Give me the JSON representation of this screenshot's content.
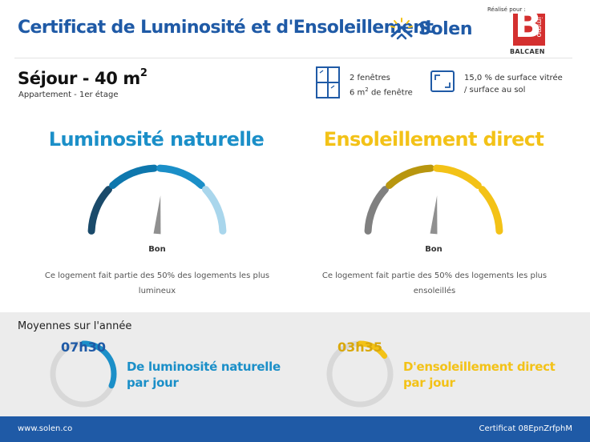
{
  "header": {
    "title": "Certificat de Luminosité et d'Ensoleillement",
    "brand_name": "Solen",
    "made_by_label": "Réalisé pour :",
    "partner_logo_word": "immo",
    "partner_name": "BALCAEN",
    "brand_color": "#1f5aa6",
    "partner_color": "#d4302f"
  },
  "room": {
    "name": "Séjour - 40 m",
    "name_sup": "2",
    "subtitle": "Appartement - 1er étage",
    "windows_count_text": "2 fenêtres",
    "window_area_text": "6 m",
    "window_area_sup": "2",
    "window_area_suffix": " de fenêtre",
    "glazed_ratio_line1": "15,0 % de surface vitrée",
    "glazed_ratio_line2": "/ surface au sol",
    "window_icon": "window-icon",
    "surface_icon": "surface-ratio-icon"
  },
  "luminosity": {
    "title": "Luminosité naturelle",
    "rating": "Bon",
    "level_segment": 3,
    "segments": 4,
    "description_line1": "Ce logement fait partie des 50% des logements les plus",
    "description_line2": "lumineux",
    "title_color": "#1b8fc8",
    "segment_colors": [
      "#1a4a6a",
      "#0e77ad",
      "#1b8fc8",
      "#a9d6ec"
    ]
  },
  "sunshine": {
    "title": "Ensoleillement direct",
    "rating": "Bon",
    "level_segment": 3,
    "segments": 4,
    "description_line1": "Ce logement fait partie des 50% des logements les plus",
    "description_line2": "ensoleillés",
    "title_color": "#f3c217",
    "segment_colors": [
      "#808080",
      "#b8960f",
      "#f3c217",
      "#f3c217"
    ]
  },
  "averages": {
    "heading": "Moyennes sur l'année",
    "luminosity_value": "07h30",
    "luminosity_fraction": 0.3125,
    "luminosity_label_line1": "De luminosité naturelle",
    "luminosity_label_line2": "par jour",
    "sunshine_value": "03h35",
    "sunshine_fraction": 0.149,
    "sunshine_label_line1": "D'ensoleillement direct",
    "sunshine_label_line2": "par jour"
  },
  "footer": {
    "url": "www.solen.co",
    "certificate_id": "Certificat 08EpnZrfphM"
  }
}
